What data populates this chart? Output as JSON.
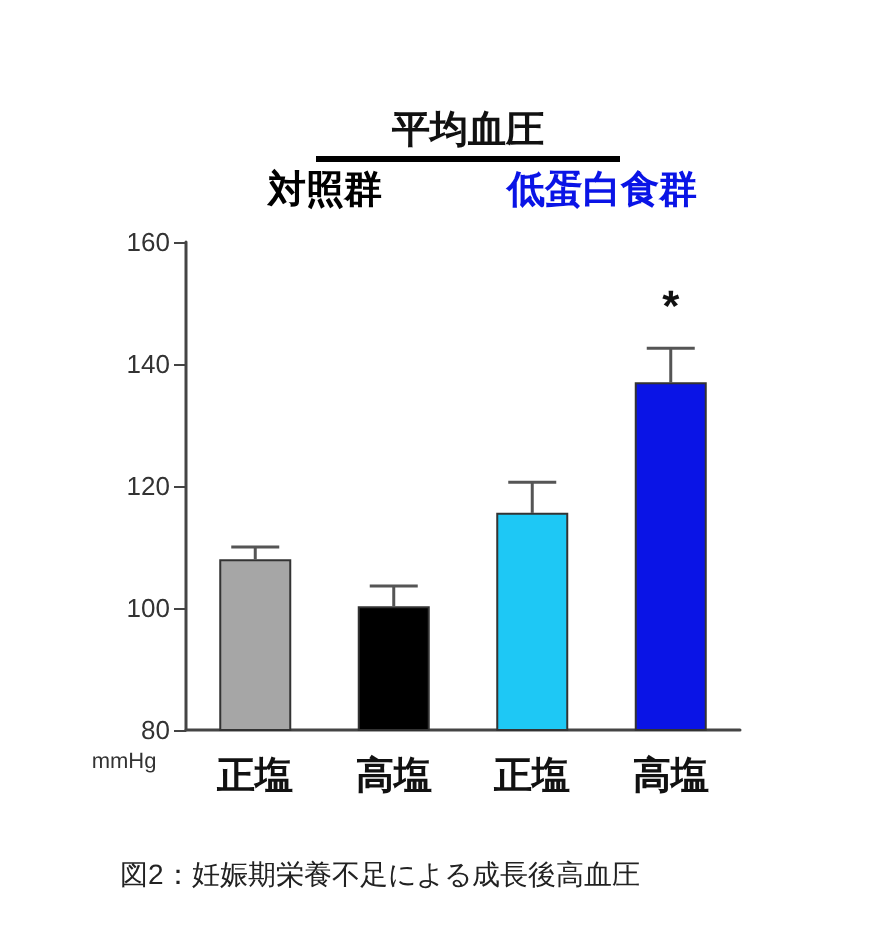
{
  "chart_data": {
    "type": "bar",
    "title": "平均血圧",
    "ylabel": "mmHg",
    "categories": [
      "正塩",
      "高塩",
      "正塩",
      "高塩"
    ],
    "values": [
      108,
      100.3,
      115.6,
      137
    ],
    "errors": [
      2,
      3.3,
      5,
      5.6
    ],
    "colors": [
      "#a6a6a6",
      "#000000",
      "#1ec8f5",
      "#0a14e6"
    ],
    "ylim": [
      80,
      160
    ],
    "yticks": [
      80,
      100,
      120,
      140,
      160
    ],
    "annotations": [
      "対照群",
      "低蛋白食群",
      "*",
      "図2：妊娠期栄養不足による成長後高血圧"
    ]
  }
}
